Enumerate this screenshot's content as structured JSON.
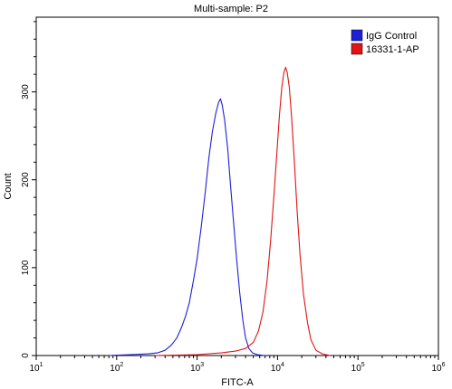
{
  "chart_data": {
    "type": "line",
    "title": "Multi-sample: P2",
    "xlabel": "FITC-A",
    "ylabel": "Count",
    "x_scale": "log",
    "xlim": [
      10,
      1000000
    ],
    "ylim": [
      0,
      385
    ],
    "x_ticks": [
      {
        "base": "10",
        "exp": "1"
      },
      {
        "base": "10",
        "exp": "2"
      },
      {
        "base": "10",
        "exp": "3"
      },
      {
        "base": "10",
        "exp": "4"
      },
      {
        "base": "10",
        "exp": "5"
      },
      {
        "base": "10",
        "exp": "6"
      }
    ],
    "y_ticks": [
      0,
      100,
      200,
      300
    ],
    "grid": false,
    "legend_position": "top-right",
    "series": [
      {
        "name": "IgG Control",
        "color": "#1f1fd6",
        "points": [
          [
            80,
            0
          ],
          [
            150,
            1
          ],
          [
            250,
            2
          ],
          [
            320,
            3
          ],
          [
            400,
            6
          ],
          [
            480,
            12
          ],
          [
            560,
            20
          ],
          [
            640,
            32
          ],
          [
            720,
            45
          ],
          [
            800,
            60
          ],
          [
            900,
            85
          ],
          [
            1000,
            110
          ],
          [
            1120,
            145
          ],
          [
            1260,
            185
          ],
          [
            1400,
            225
          ],
          [
            1550,
            255
          ],
          [
            1700,
            275
          ],
          [
            1850,
            288
          ],
          [
            1950,
            292
          ],
          [
            2050,
            285
          ],
          [
            2200,
            268
          ],
          [
            2400,
            235
          ],
          [
            2600,
            195
          ],
          [
            2850,
            150
          ],
          [
            3100,
            110
          ],
          [
            3400,
            70
          ],
          [
            3700,
            40
          ],
          [
            4000,
            20
          ],
          [
            4400,
            8
          ],
          [
            4900,
            3
          ],
          [
            5600,
            1
          ],
          [
            7000,
            0
          ]
        ]
      },
      {
        "name": "16331-1-AP",
        "color": "#e01414",
        "points": [
          [
            300,
            0
          ],
          [
            1000,
            1
          ],
          [
            2000,
            3
          ],
          [
            3000,
            5
          ],
          [
            4000,
            8
          ],
          [
            5000,
            15
          ],
          [
            5800,
            28
          ],
          [
            6600,
            50
          ],
          [
            7400,
            85
          ],
          [
            8200,
            130
          ],
          [
            9000,
            180
          ],
          [
            9800,
            230
          ],
          [
            10600,
            275
          ],
          [
            11300,
            305
          ],
          [
            12000,
            322
          ],
          [
            12600,
            328
          ],
          [
            13200,
            322
          ],
          [
            14000,
            305
          ],
          [
            15000,
            270
          ],
          [
            16200,
            220
          ],
          [
            17500,
            165
          ],
          [
            19000,
            115
          ],
          [
            21000,
            70
          ],
          [
            23500,
            38
          ],
          [
            26000,
            18
          ],
          [
            30000,
            6
          ],
          [
            36000,
            2
          ],
          [
            45000,
            0
          ]
        ]
      }
    ]
  }
}
